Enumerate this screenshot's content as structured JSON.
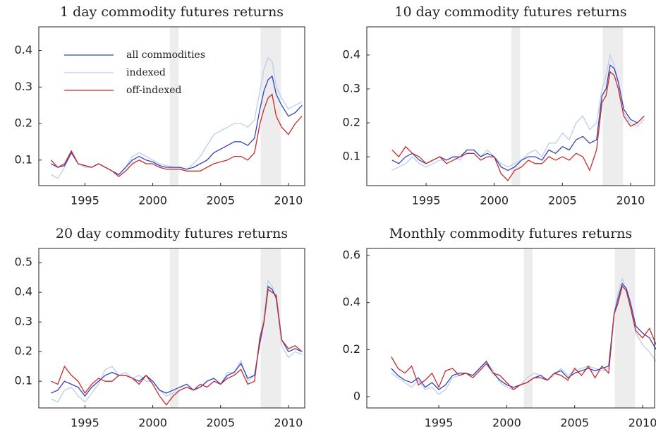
{
  "chart_data": [
    {
      "type": "line",
      "title": "1 day commodity futures returns",
      "legend": "upper left",
      "x": [
        1992.5,
        1993,
        1993.5,
        1994,
        1994.5,
        1995,
        1995.5,
        1996,
        1996.5,
        1997,
        1997.5,
        1998,
        1998.5,
        1999,
        1999.5,
        2000,
        2000.5,
        2001,
        2001.5,
        2002,
        2002.5,
        2003,
        2003.5,
        2004,
        2004.5,
        2005,
        2005.5,
        2006,
        2006.5,
        2007,
        2007.5,
        2007.9,
        2008.2,
        2008.5,
        2008.8,
        2009.1,
        2009.5,
        2010,
        2010.5,
        2011
      ],
      "series": [
        {
          "name": "all commodities",
          "color": "#3344bb",
          "values": [
            0.09,
            0.08,
            0.085,
            0.12,
            0.09,
            0.085,
            0.08,
            0.09,
            0.08,
            0.07,
            0.06,
            0.08,
            0.1,
            0.11,
            0.1,
            0.095,
            0.085,
            0.08,
            0.08,
            0.08,
            0.075,
            0.08,
            0.09,
            0.1,
            0.12,
            0.13,
            0.14,
            0.15,
            0.15,
            0.14,
            0.16,
            0.24,
            0.29,
            0.32,
            0.33,
            0.28,
            0.25,
            0.22,
            0.23,
            0.25
          ]
        },
        {
          "name": "indexed",
          "color": "#b8cff0",
          "values": [
            0.06,
            0.05,
            0.08,
            0.12,
            0.09,
            0.08,
            0.08,
            0.09,
            0.08,
            0.07,
            0.06,
            0.08,
            0.11,
            0.12,
            0.11,
            0.1,
            0.09,
            0.085,
            0.08,
            0.08,
            0.075,
            0.09,
            0.11,
            0.14,
            0.17,
            0.18,
            0.19,
            0.2,
            0.2,
            0.19,
            0.21,
            0.29,
            0.35,
            0.38,
            0.37,
            0.3,
            0.27,
            0.24,
            0.25,
            0.26
          ]
        },
        {
          "name": "off-indexed",
          "color": "#cc2a2a",
          "values": [
            0.1,
            0.08,
            0.09,
            0.125,
            0.09,
            0.085,
            0.08,
            0.09,
            0.08,
            0.07,
            0.055,
            0.07,
            0.09,
            0.1,
            0.09,
            0.09,
            0.08,
            0.075,
            0.075,
            0.075,
            0.07,
            0.07,
            0.07,
            0.08,
            0.09,
            0.095,
            0.1,
            0.11,
            0.11,
            0.1,
            0.12,
            0.2,
            0.24,
            0.27,
            0.28,
            0.22,
            0.19,
            0.17,
            0.2,
            0.22
          ]
        }
      ],
      "shaded": [
        [
          2001.25,
          2001.9
        ],
        [
          2007.95,
          2009.45
        ]
      ],
      "xlim": [
        1991.6,
        2011.2
      ],
      "xticks": [
        1995,
        2000,
        2005,
        2010
      ],
      "ylim": [
        0.03,
        0.465
      ],
      "yticks": [
        0.1,
        0.2,
        0.3,
        0.4
      ]
    },
    {
      "type": "line",
      "title": "10 day commodity futures returns",
      "x": [
        1992.5,
        1993,
        1993.5,
        1994,
        1994.5,
        1995,
        1995.5,
        1996,
        1996.5,
        1997,
        1997.5,
        1998,
        1998.5,
        1999,
        1999.5,
        2000,
        2000.5,
        2001,
        2001.5,
        2002,
        2002.5,
        2003,
        2003.5,
        2004,
        2004.5,
        2005,
        2005.5,
        2006,
        2006.5,
        2007,
        2007.5,
        2007.9,
        2008.2,
        2008.5,
        2008.8,
        2009.1,
        2009.5,
        2010,
        2010.5,
        2011
      ],
      "series": [
        {
          "name": "all commodities",
          "color": "#3344bb",
          "values": [
            0.09,
            0.08,
            0.1,
            0.11,
            0.09,
            0.08,
            0.09,
            0.1,
            0.09,
            0.1,
            0.1,
            0.12,
            0.12,
            0.1,
            0.11,
            0.1,
            0.07,
            0.06,
            0.07,
            0.09,
            0.1,
            0.1,
            0.09,
            0.12,
            0.11,
            0.13,
            0.12,
            0.15,
            0.16,
            0.14,
            0.15,
            0.28,
            0.3,
            0.37,
            0.36,
            0.32,
            0.24,
            0.21,
            0.2,
            0.22
          ]
        },
        {
          "name": "indexed",
          "color": "#b8cff0",
          "values": [
            0.06,
            0.07,
            0.08,
            0.1,
            0.08,
            0.07,
            0.08,
            0.09,
            0.09,
            0.1,
            0.09,
            0.12,
            0.12,
            0.1,
            0.12,
            0.1,
            0.08,
            0.07,
            0.08,
            0.09,
            0.11,
            0.12,
            0.1,
            0.14,
            0.14,
            0.17,
            0.15,
            0.2,
            0.22,
            0.18,
            0.2,
            0.3,
            0.34,
            0.4,
            0.37,
            0.32,
            0.23,
            0.2,
            0.19,
            0.21
          ]
        },
        {
          "name": "off-indexed",
          "color": "#cc2a2a",
          "values": [
            0.12,
            0.1,
            0.13,
            0.11,
            0.1,
            0.08,
            0.09,
            0.1,
            0.08,
            0.09,
            0.1,
            0.11,
            0.11,
            0.09,
            0.1,
            0.1,
            0.05,
            0.03,
            0.06,
            0.07,
            0.09,
            0.08,
            0.08,
            0.1,
            0.09,
            0.1,
            0.09,
            0.11,
            0.1,
            0.06,
            0.12,
            0.26,
            0.28,
            0.35,
            0.34,
            0.3,
            0.22,
            0.19,
            0.2,
            0.22
          ]
        }
      ],
      "shaded": [
        [
          2001.25,
          2001.9
        ],
        [
          2007.95,
          2009.45
        ]
      ],
      "xlim": [
        1990.65,
        2011.76
      ],
      "xticks": [
        1995,
        2000,
        2005,
        2010
      ],
      "ylim": [
        0.015,
        0.483
      ],
      "yticks": [
        0.1,
        0.2,
        0.3,
        0.4
      ]
    },
    {
      "type": "line",
      "title": "20 day commodity futures returns",
      "x": [
        1992.5,
        1993,
        1993.5,
        1994,
        1994.5,
        1995,
        1995.5,
        1996,
        1996.5,
        1997,
        1997.5,
        1998,
        1998.5,
        1999,
        1999.5,
        2000,
        2000.5,
        2001,
        2001.5,
        2002,
        2002.5,
        2003,
        2003.5,
        2004,
        2004.5,
        2005,
        2005.5,
        2006,
        2006.5,
        2007,
        2007.5,
        2007.9,
        2008.2,
        2008.5,
        2008.8,
        2009.1,
        2009.5,
        2010,
        2010.5,
        2011
      ],
      "series": [
        {
          "name": "all commodities",
          "color": "#3344bb",
          "values": [
            0.06,
            0.07,
            0.1,
            0.09,
            0.08,
            0.05,
            0.08,
            0.1,
            0.12,
            0.13,
            0.12,
            0.12,
            0.11,
            0.1,
            0.12,
            0.1,
            0.07,
            0.06,
            0.07,
            0.08,
            0.09,
            0.07,
            0.08,
            0.1,
            0.11,
            0.09,
            0.12,
            0.13,
            0.16,
            0.11,
            0.12,
            0.23,
            0.3,
            0.42,
            0.41,
            0.38,
            0.24,
            0.2,
            0.21,
            0.2
          ]
        },
        {
          "name": "indexed",
          "color": "#b8cff0",
          "values": [
            0.04,
            0.03,
            0.07,
            0.08,
            0.05,
            0.03,
            0.06,
            0.09,
            0.14,
            0.15,
            0.12,
            0.13,
            0.11,
            0.12,
            0.1,
            0.1,
            0.07,
            0.05,
            0.06,
            0.07,
            0.08,
            0.07,
            0.08,
            0.1,
            0.11,
            0.09,
            0.13,
            0.13,
            0.17,
            0.1,
            0.12,
            0.24,
            0.32,
            0.44,
            0.42,
            0.38,
            0.22,
            0.18,
            0.2,
            0.19
          ]
        },
        {
          "name": "off-indexed",
          "color": "#cc2a2a",
          "values": [
            0.1,
            0.09,
            0.15,
            0.12,
            0.1,
            0.06,
            0.09,
            0.11,
            0.1,
            0.1,
            0.12,
            0.12,
            0.11,
            0.09,
            0.12,
            0.09,
            0.05,
            0.02,
            0.05,
            0.07,
            0.08,
            0.07,
            0.09,
            0.08,
            0.1,
            0.09,
            0.11,
            0.12,
            0.14,
            0.09,
            0.1,
            0.25,
            0.3,
            0.41,
            0.4,
            0.39,
            0.24,
            0.21,
            0.22,
            0.2
          ]
        }
      ],
      "shaded": [
        [
          2001.25,
          2001.9
        ],
        [
          2007.95,
          2009.45
        ]
      ],
      "xlim": [
        1991.6,
        2011.2
      ],
      "xticks": [
        1995,
        2000,
        2005,
        2010
      ],
      "ylim": [
        0.01,
        0.548
      ],
      "yticks": [
        0.1,
        0.2,
        0.3,
        0.4,
        0.5
      ]
    },
    {
      "type": "line",
      "title": "Monthly commodity futures returns",
      "x": [
        1991.5,
        1992,
        1992.5,
        1993,
        1993.5,
        1994,
        1994.5,
        1995,
        1995.5,
        1996,
        1996.5,
        1997,
        1997.5,
        1998,
        1998.5,
        1999,
        1999.5,
        2000,
        2000.5,
        2001,
        2001.5,
        2002,
        2002.5,
        2003,
        2003.5,
        2004,
        2004.5,
        2005,
        2005.5,
        2006,
        2006.5,
        2007,
        2007.5,
        2007.9,
        2008.2,
        2008.5,
        2008.8,
        2009.1,
        2009.5,
        2010,
        2010.5,
        2011
      ],
      "series": [
        {
          "name": "all commodities",
          "color": "#3344bb",
          "values": [
            0.12,
            0.09,
            0.07,
            0.06,
            0.08,
            0.04,
            0.06,
            0.03,
            0.05,
            0.09,
            0.1,
            0.1,
            0.09,
            0.12,
            0.15,
            0.1,
            0.07,
            0.05,
            0.04,
            0.05,
            0.06,
            0.08,
            0.09,
            0.07,
            0.1,
            0.11,
            0.08,
            0.1,
            0.11,
            0.12,
            0.11,
            0.12,
            0.13,
            0.35,
            0.42,
            0.48,
            0.46,
            0.4,
            0.3,
            0.27,
            0.25,
            0.2
          ]
        },
        {
          "name": "indexed",
          "color": "#b8cff0",
          "values": [
            0.1,
            0.08,
            0.06,
            0.04,
            0.07,
            0.03,
            0.04,
            0.01,
            0.03,
            0.08,
            0.09,
            0.1,
            0.09,
            0.12,
            0.15,
            0.11,
            0.06,
            0.04,
            0.03,
            0.05,
            0.08,
            0.1,
            0.09,
            0.07,
            0.09,
            0.12,
            0.09,
            0.11,
            0.12,
            0.13,
            0.12,
            0.11,
            0.12,
            0.36,
            0.44,
            0.5,
            0.45,
            0.38,
            0.27,
            0.22,
            0.19,
            0.15
          ]
        },
        {
          "name": "off-indexed",
          "color": "#cc2a2a",
          "values": [
            0.17,
            0.12,
            0.1,
            0.13,
            0.05,
            0.07,
            0.1,
            0.04,
            0.11,
            0.12,
            0.09,
            0.1,
            0.08,
            0.11,
            0.14,
            0.1,
            0.09,
            0.06,
            0.03,
            0.05,
            0.06,
            0.08,
            0.08,
            0.07,
            0.1,
            0.09,
            0.07,
            0.12,
            0.09,
            0.13,
            0.08,
            0.13,
            0.1,
            0.35,
            0.4,
            0.47,
            0.45,
            0.38,
            0.28,
            0.25,
            0.29,
            0.22
          ]
        }
      ],
      "shaded": [
        [
          2001.25,
          2001.9
        ],
        [
          2007.95,
          2009.45
        ]
      ],
      "xlim": [
        1989.7,
        2010.88
      ],
      "xticks": [
        1995,
        2000,
        2005,
        2010
      ],
      "ylim": [
        -0.048,
        0.63
      ],
      "yticks": [
        0,
        0.2,
        0.4,
        0.6
      ]
    }
  ]
}
